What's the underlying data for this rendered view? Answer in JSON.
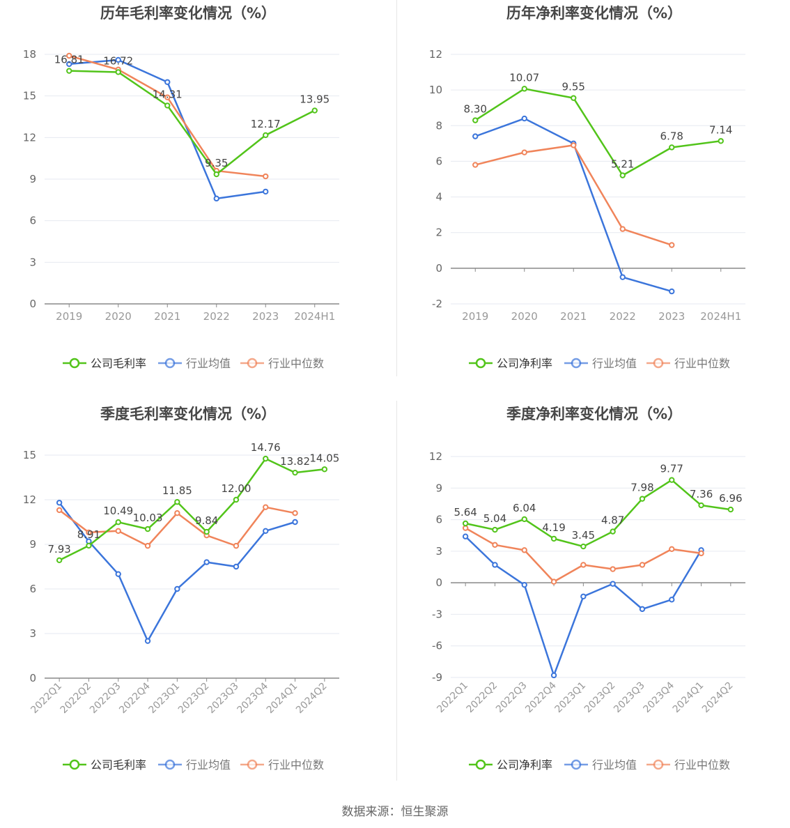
{
  "colors": {
    "company": "#52c41a",
    "industry_avg": "#3b75db",
    "industry_median": "#f0845a",
    "grid": "#e6e9f0",
    "axis": "#888888",
    "text": "#666666",
    "title": "#464646"
  },
  "source": "数据来源：恒生聚源",
  "chart_data": [
    {
      "id": "annual-gross",
      "type": "line",
      "title": "历年毛利率变化情况（%）",
      "categories": [
        "2019",
        "2020",
        "2021",
        "2022",
        "2023",
        "2024H1"
      ],
      "ylim": [
        0,
        18
      ],
      "yticks": [
        0,
        3,
        6,
        9,
        12,
        15,
        18
      ],
      "series": [
        {
          "name": "公司毛利率",
          "role": "company",
          "values": [
            16.81,
            16.72,
            14.31,
            9.35,
            12.17,
            13.95
          ],
          "labels": [
            "16.81",
            "16.72",
            "14.31",
            "9.35",
            "12.17",
            "13.95"
          ]
        },
        {
          "name": "行业均值",
          "role": "industry_avg",
          "values": [
            17.3,
            17.6,
            16.0,
            7.6,
            8.1,
            null
          ]
        },
        {
          "name": "行业中位数",
          "role": "industry_median",
          "values": [
            17.9,
            16.9,
            14.9,
            9.6,
            9.2,
            null
          ]
        }
      ],
      "xlabel_rotate": false
    },
    {
      "id": "annual-net",
      "type": "line",
      "title": "历年净利率变化情况（%）",
      "categories": [
        "2019",
        "2020",
        "2021",
        "2022",
        "2023",
        "2024H1"
      ],
      "ylim": [
        -2,
        12
      ],
      "yticks": [
        -2,
        0,
        2,
        4,
        6,
        8,
        10,
        12
      ],
      "series": [
        {
          "name": "公司净利率",
          "role": "company",
          "values": [
            8.3,
            10.07,
            9.55,
            5.21,
            6.78,
            7.14
          ],
          "labels": [
            "8.30",
            "10.07",
            "9.55",
            "5.21",
            "6.78",
            "7.14"
          ]
        },
        {
          "name": "行业均值",
          "role": "industry_avg",
          "values": [
            7.4,
            8.4,
            7.0,
            -0.5,
            -1.3,
            null
          ]
        },
        {
          "name": "行业中位数",
          "role": "industry_median",
          "values": [
            5.8,
            6.5,
            6.9,
            2.2,
            1.3,
            null
          ]
        }
      ],
      "xlabel_rotate": false
    },
    {
      "id": "quarterly-gross",
      "type": "line",
      "title": "季度毛利率变化情况（%）",
      "categories": [
        "2022Q1",
        "2022Q2",
        "2022Q3",
        "2022Q4",
        "2023Q1",
        "2023Q2",
        "2023Q3",
        "2023Q4",
        "2024Q1",
        "2024Q2"
      ],
      "ylim": [
        0,
        15
      ],
      "yticks": [
        0,
        3,
        6,
        9,
        12,
        15
      ],
      "series": [
        {
          "name": "公司毛利率",
          "role": "company",
          "values": [
            7.93,
            8.91,
            10.49,
            10.03,
            11.85,
            9.84,
            12.0,
            14.76,
            13.82,
            14.05
          ],
          "labels": [
            "7.93",
            "8.91",
            "10.49",
            "10.03",
            "11.85",
            "9.84",
            "12.00",
            "14.76",
            "13.82",
            "14.05"
          ]
        },
        {
          "name": "行业均值",
          "role": "industry_avg",
          "values": [
            11.8,
            9.2,
            7.0,
            2.5,
            6.0,
            7.8,
            7.5,
            9.9,
            10.5,
            null
          ]
        },
        {
          "name": "行业中位数",
          "role": "industry_median",
          "values": [
            11.3,
            9.8,
            9.9,
            8.9,
            11.1,
            9.6,
            8.9,
            11.5,
            11.1,
            null
          ]
        }
      ],
      "xlabel_rotate": true
    },
    {
      "id": "quarterly-net",
      "type": "line",
      "title": "季度净利率变化情况（%）",
      "categories": [
        "2022Q1",
        "2022Q2",
        "2022Q3",
        "2022Q4",
        "2023Q1",
        "2023Q2",
        "2023Q3",
        "2023Q4",
        "2024Q1",
        "2024Q2"
      ],
      "ylim": [
        -9,
        12
      ],
      "yticks": [
        -9,
        -6,
        -3,
        0,
        3,
        6,
        9,
        12
      ],
      "series": [
        {
          "name": "公司净利率",
          "role": "company",
          "values": [
            5.64,
            5.04,
            6.04,
            4.19,
            3.45,
            4.87,
            7.98,
            9.77,
            7.36,
            6.96
          ],
          "labels": [
            "5.64",
            "5.04",
            "6.04",
            "4.19",
            "3.45",
            "4.87",
            "7.98",
            "9.77",
            "7.36",
            "6.96"
          ]
        },
        {
          "name": "行业均值",
          "role": "industry_avg",
          "values": [
            4.4,
            1.7,
            -0.2,
            -8.8,
            -1.3,
            -0.1,
            -2.5,
            -1.6,
            3.1,
            null
          ]
        },
        {
          "name": "行业中位数",
          "role": "industry_median",
          "values": [
            5.2,
            3.6,
            3.1,
            0.1,
            1.7,
            1.3,
            1.7,
            3.2,
            2.8,
            null
          ]
        }
      ],
      "xlabel_rotate": true
    }
  ]
}
